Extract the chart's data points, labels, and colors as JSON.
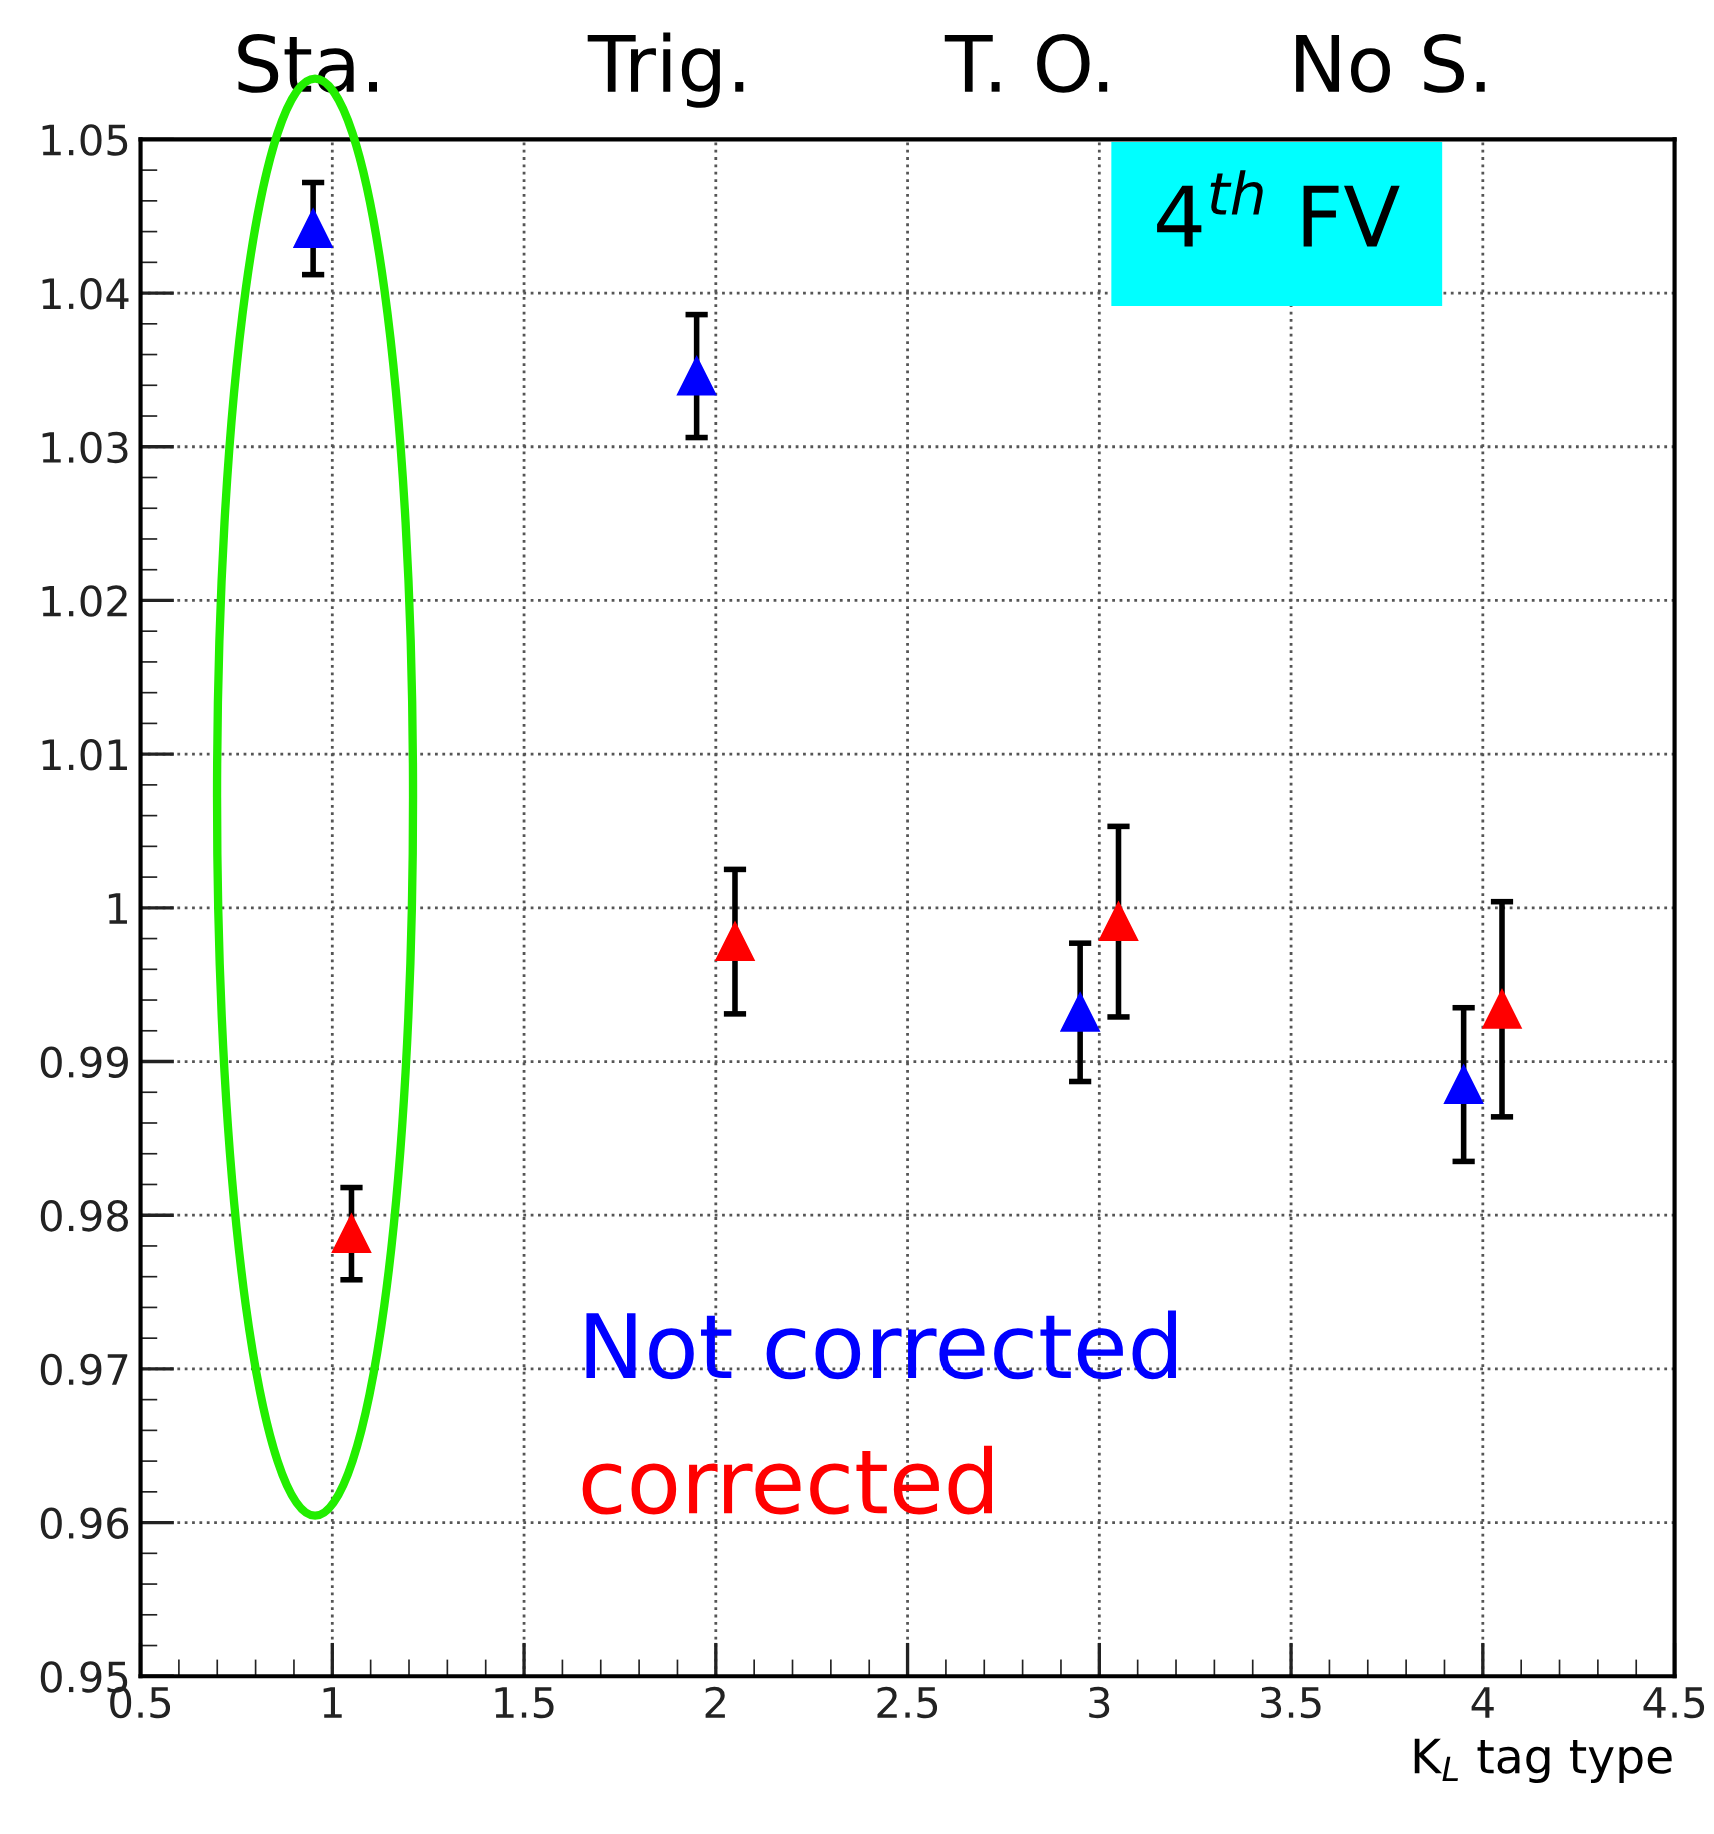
{
  "chart_data": {
    "type": "scatter",
    "xlabel": "K$_{L}$ tag type",
    "xlim": [
      0.5,
      4.5
    ],
    "xticks": [
      0.5,
      1,
      1.5,
      2,
      2.5,
      3,
      3.5,
      4,
      4.5
    ],
    "ylim": [
      0.95,
      1.05
    ],
    "yticks": [
      0.95,
      0.96,
      0.97,
      0.98,
      0.99,
      1,
      1.01,
      1.02,
      1.03,
      1.04,
      1.05
    ],
    "grid": true,
    "legend": false,
    "marker": "triangle",
    "series": [
      {
        "name": "Not corrected",
        "color": "#0000ff",
        "x": [
          0.95,
          1.95,
          2.95,
          3.95
        ],
        "values": [
          1.0442,
          1.0346,
          0.9932,
          0.9885
        ],
        "errors": [
          0.003,
          0.004,
          0.0045,
          0.005
        ]
      },
      {
        "name": "corrected",
        "color": "#ff0000",
        "x": [
          1.05,
          2.05,
          3.05,
          4.05
        ],
        "values": [
          0.9788,
          0.9978,
          0.9991,
          0.9934
        ],
        "errors": [
          0.003,
          0.0047,
          0.0062,
          0.007
        ]
      }
    ],
    "annotations": [
      "Sta.",
      "Trig.",
      "T. O.",
      "No S.",
      "4$^{th}$ FV"
    ]
  }
}
